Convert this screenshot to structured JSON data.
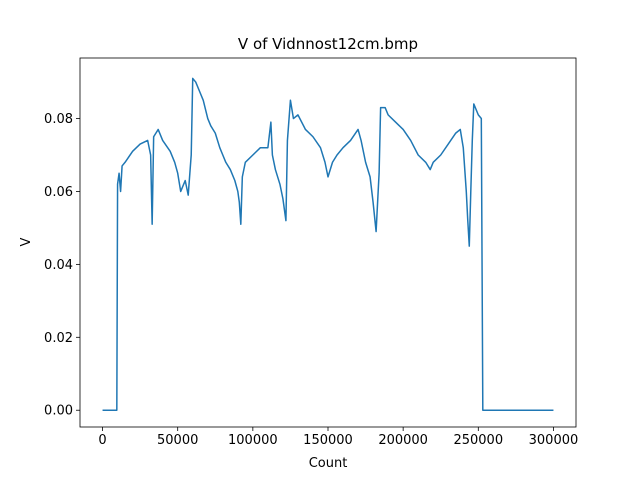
{
  "chart_data": {
    "type": "line",
    "title": "V of Vidnnost12cm.bmp",
    "x_label": "Count",
    "y_label": "V",
    "color": "#1f77b4",
    "x": [
      0,
      9500,
      10000,
      11000,
      12000,
      13000,
      15000,
      20000,
      25000,
      30000,
      32000,
      33000,
      34000,
      37000,
      40000,
      45000,
      48000,
      50000,
      52000,
      55000,
      57000,
      59000,
      60000,
      62000,
      65000,
      67000,
      70000,
      72000,
      75000,
      78000,
      80000,
      82000,
      85000,
      88000,
      90000,
      91000,
      92000,
      93000,
      95000,
      100000,
      105000,
      110000,
      112000,
      113000,
      115000,
      118000,
      120000,
      122000,
      123000,
      125000,
      127000,
      130000,
      135000,
      140000,
      145000,
      148000,
      150000,
      153000,
      156000,
      160000,
      165000,
      170000,
      172000,
      175000,
      178000,
      180000,
      182000,
      184000,
      185000,
      188000,
      190000,
      195000,
      200000,
      205000,
      210000,
      215000,
      218000,
      220000,
      225000,
      230000,
      235000,
      238000,
      240000,
      242000,
      243000,
      244000,
      245000,
      246000,
      247000,
      250000,
      252000,
      253000,
      300000
    ],
    "values": [
      0,
      0,
      0.062,
      0.065,
      0.06,
      0.067,
      0.068,
      0.071,
      0.073,
      0.074,
      0.07,
      0.051,
      0.075,
      0.077,
      0.074,
      0.071,
      0.068,
      0.065,
      0.06,
      0.063,
      0.059,
      0.07,
      0.091,
      0.09,
      0.087,
      0.085,
      0.08,
      0.078,
      0.076,
      0.072,
      0.07,
      0.068,
      0.066,
      0.063,
      0.06,
      0.057,
      0.051,
      0.064,
      0.068,
      0.07,
      0.072,
      0.072,
      0.079,
      0.07,
      0.066,
      0.062,
      0.058,
      0.052,
      0.074,
      0.085,
      0.08,
      0.081,
      0.077,
      0.075,
      0.072,
      0.068,
      0.064,
      0.068,
      0.07,
      0.072,
      0.074,
      0.077,
      0.074,
      0.068,
      0.064,
      0.057,
      0.049,
      0.065,
      0.083,
      0.083,
      0.081,
      0.079,
      0.077,
      0.074,
      0.07,
      0.068,
      0.066,
      0.068,
      0.07,
      0.073,
      0.076,
      0.077,
      0.072,
      0.06,
      0.052,
      0.045,
      0.06,
      0.074,
      0.084,
      0.081,
      0.08,
      0,
      0
    ],
    "xlim": [
      -15000,
      315000
    ],
    "xticks": [
      0,
      50000,
      100000,
      150000,
      200000,
      250000,
      300000
    ],
    "ylim": [
      -0.0046,
      0.0966
    ],
    "yticks": [
      {
        "value": 0,
        "label": "0.00"
      },
      0.02,
      0.04,
      0.06,
      0.08
    ]
  }
}
